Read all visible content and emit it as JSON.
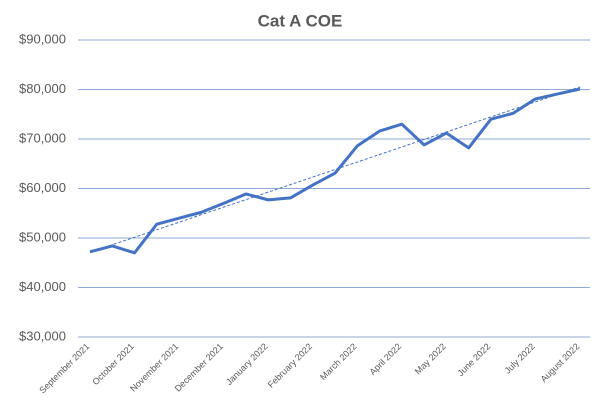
{
  "chart_data": {
    "type": "line",
    "title": "Cat A COE",
    "categories": [
      "September 2021",
      null,
      "October 2021",
      null,
      "November 2021",
      null,
      "December 2021",
      null,
      "January 2022",
      null,
      "February 2022",
      null,
      "March 2022",
      null,
      "April 2022",
      null,
      "May 2022",
      null,
      "June 2022",
      null,
      "July 2022",
      null,
      "August 2022"
    ],
    "series": [
      {
        "name": "Cat A COE",
        "color": "#4472c4",
        "values": [
          47200,
          48400,
          47000,
          52800,
          54000,
          55200,
          57000,
          58900,
          57700,
          58100,
          60700,
          63100,
          68600,
          71600,
          73000,
          68800,
          71200,
          68200,
          74000,
          75200,
          78100,
          79100,
          80100
        ]
      }
    ],
    "trendline": "linear",
    "ylim": [
      30000,
      90000
    ],
    "yticks": [
      {
        "value": 30000,
        "label": "$30,000"
      },
      {
        "value": 40000,
        "label": "$40,000"
      },
      {
        "value": 50000,
        "label": "$50,000"
      },
      {
        "value": 60000,
        "label": "$60,000"
      },
      {
        "value": 70000,
        "label": "$70,000"
      },
      {
        "value": 80000,
        "label": "$80,000"
      },
      {
        "value": 90000,
        "label": "$90,000"
      }
    ],
    "grid": true
  }
}
